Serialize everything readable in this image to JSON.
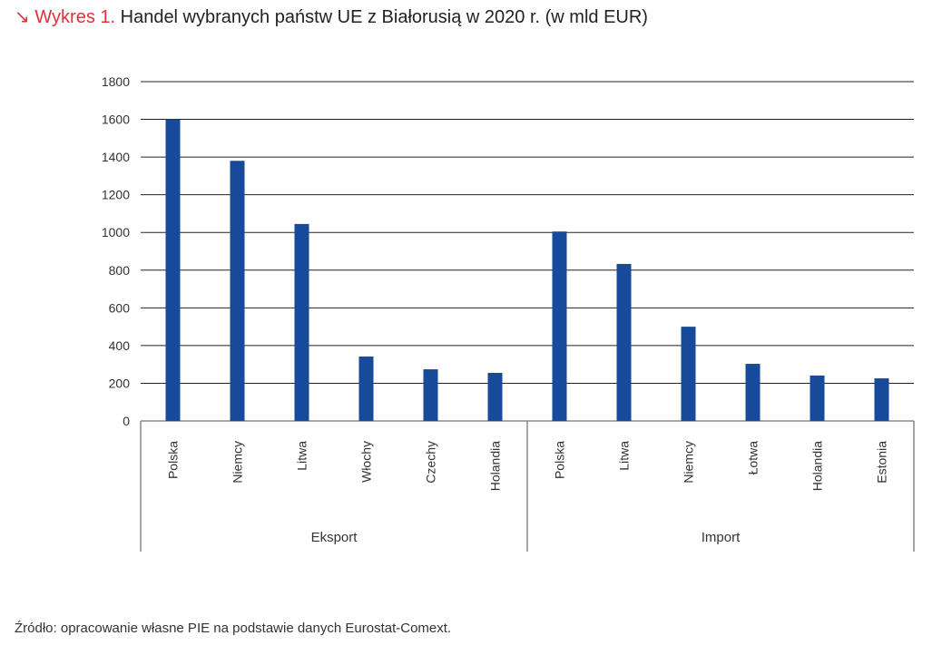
{
  "title": {
    "arrow": "↘",
    "label": "Wykres 1.",
    "text": "Handel wybranych państw UE z Białorusią w 2020 r. (w mld EUR)"
  },
  "source": "Źródło: opracowanie własne PIE na podstawie danych Eurostat-Comext.",
  "colors": {
    "bar": "#174a9a",
    "label_accent": "#e0303a"
  },
  "chart_data": {
    "type": "bar",
    "ylim": [
      0,
      1800
    ],
    "yticks": [
      0,
      200,
      400,
      600,
      800,
      1000,
      1200,
      1400,
      1600,
      1800
    ],
    "grid": true,
    "groups": [
      {
        "name": "Eksport",
        "categories": [
          "Polska",
          "Niemcy",
          "Litwa",
          "Włochy",
          "Czechy",
          "Holandia"
        ],
        "values": [
          1600,
          1380,
          1045,
          342,
          274,
          255
        ]
      },
      {
        "name": "Import",
        "categories": [
          "Polska",
          "Litwa",
          "Niemcy",
          "Łotwa",
          "Holandia",
          "Estonia"
        ],
        "values": [
          1005,
          833,
          500,
          303,
          241,
          226
        ]
      }
    ]
  }
}
